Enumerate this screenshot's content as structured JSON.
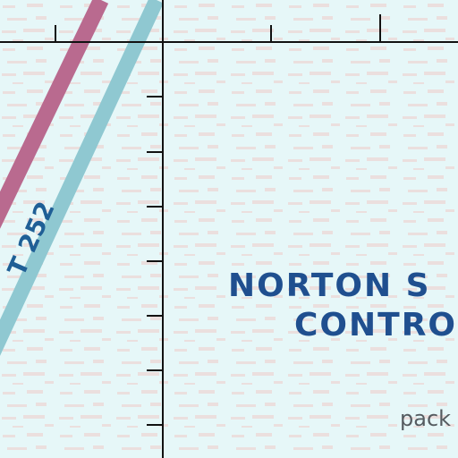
{
  "map": {
    "area_label_line1": "NORTON S",
    "area_label_line2": "CONTRO",
    "route_label": "T 252",
    "corner_text": "pack",
    "colors": {
      "water": "#e6f7f8",
      "texture": "#e9dedd",
      "route_magenta": "#b96a8f",
      "route_blue": "#8fc8d1",
      "grid_lines": "#111111",
      "label_blue": "#1f4f8f"
    }
  }
}
